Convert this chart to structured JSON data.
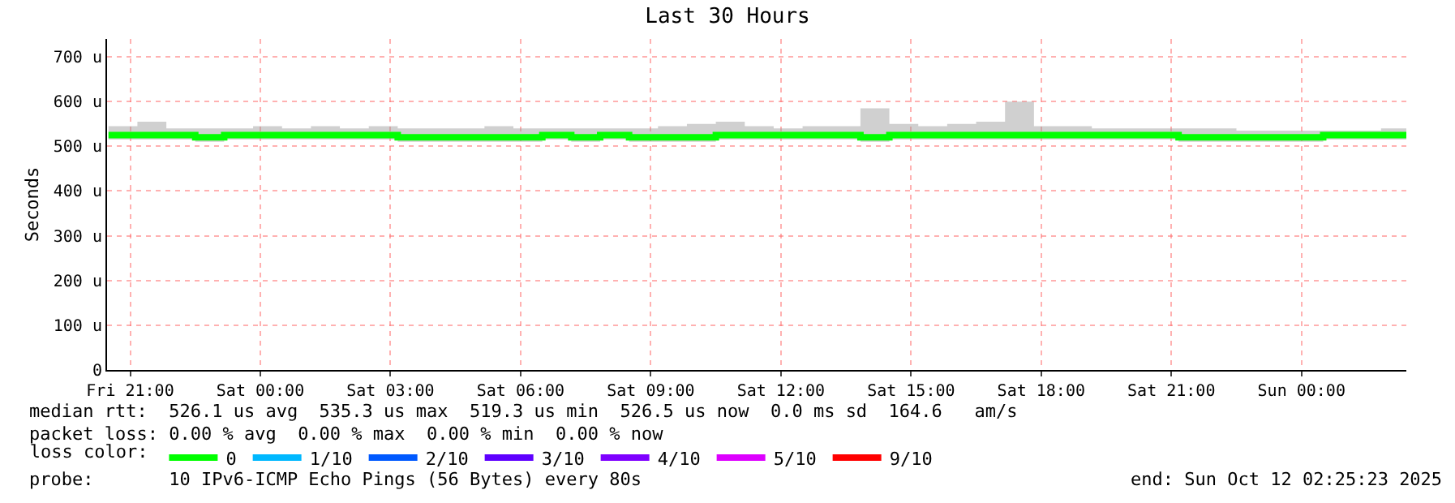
{
  "chart_data": {
    "type": "step",
    "title": "Last 30 Hours",
    "ylabel": "Seconds",
    "legend_title": "loss color:",
    "x": [
      "2025-10-10T20:30",
      "2025-10-10T21:10",
      "2025-10-10T21:50",
      "2025-10-10T22:30",
      "2025-10-10T23:10",
      "2025-10-10T23:50",
      "2025-10-11T00:30",
      "2025-10-11T01:10",
      "2025-10-11T01:50",
      "2025-10-11T02:30",
      "2025-10-11T03:10",
      "2025-10-11T03:50",
      "2025-10-11T04:30",
      "2025-10-11T05:10",
      "2025-10-11T05:50",
      "2025-10-11T06:30",
      "2025-10-11T07:10",
      "2025-10-11T07:50",
      "2025-10-11T08:30",
      "2025-10-11T09:10",
      "2025-10-11T09:50",
      "2025-10-11T10:30",
      "2025-10-11T11:10",
      "2025-10-11T11:50",
      "2025-10-11T12:30",
      "2025-10-11T13:10",
      "2025-10-11T13:50",
      "2025-10-11T14:30",
      "2025-10-11T15:10",
      "2025-10-11T15:50",
      "2025-10-11T16:30",
      "2025-10-11T17:10",
      "2025-10-11T17:50",
      "2025-10-11T18:30",
      "2025-10-11T19:10",
      "2025-10-11T19:50",
      "2025-10-11T20:30",
      "2025-10-11T21:10",
      "2025-10-11T21:50",
      "2025-10-11T22:30",
      "2025-10-11T23:10",
      "2025-10-11T23:50",
      "2025-10-12T00:30",
      "2025-10-12T01:10",
      "2025-10-12T01:50",
      "2025-10-12T02:25"
    ],
    "series": [
      {
        "name": "0",
        "color": "#00ff00",
        "values": [
          525,
          525,
          525,
          520,
          525,
          525,
          525,
          525,
          525,
          525,
          520,
          520,
          520,
          520,
          520,
          525,
          520,
          525,
          520,
          520,
          520,
          525,
          525,
          525,
          525,
          525,
          520,
          525,
          525,
          525,
          525,
          525,
          525,
          525,
          525,
          525,
          525,
          520,
          520,
          520,
          520,
          520,
          525,
          525,
          525,
          525
        ],
        "lower": [
          515,
          515,
          515,
          510,
          515,
          515,
          515,
          515,
          515,
          515,
          510,
          510,
          510,
          510,
          510,
          515,
          510,
          515,
          510,
          510,
          510,
          515,
          515,
          515,
          515,
          515,
          510,
          515,
          515,
          515,
          515,
          515,
          515,
          515,
          515,
          515,
          515,
          510,
          510,
          510,
          510,
          510,
          515,
          515,
          515,
          515
        ],
        "upper": [
          545,
          555,
          540,
          540,
          540,
          545,
          540,
          545,
          540,
          545,
          540,
          540,
          540,
          545,
          540,
          540,
          540,
          540,
          540,
          545,
          550,
          555,
          545,
          540,
          545,
          545,
          585,
          550,
          545,
          550,
          555,
          600,
          545,
          545,
          540,
          540,
          540,
          540,
          540,
          535,
          535,
          535,
          535,
          535,
          540,
          540
        ]
      },
      {
        "name": "1/10",
        "color": "#00b8ff",
        "values": [
          null,
          null,
          null,
          null,
          null,
          null,
          null,
          null,
          null,
          null,
          null,
          null,
          null,
          null,
          null,
          null,
          null,
          null,
          null,
          null,
          null,
          null,
          null,
          null,
          null,
          null,
          null,
          null,
          null,
          null,
          null,
          null,
          null,
          null,
          null,
          null,
          null,
          null,
          null,
          null,
          null,
          null,
          null,
          null,
          null,
          null
        ]
      },
      {
        "name": "2/10",
        "color": "#0059ff",
        "values": [
          null,
          null,
          null,
          null,
          null,
          null,
          null,
          null,
          null,
          null,
          null,
          null,
          null,
          null,
          null,
          null,
          null,
          null,
          null,
          null,
          null,
          null,
          null,
          null,
          null,
          null,
          null,
          null,
          null,
          null,
          null,
          null,
          null,
          null,
          null,
          null,
          null,
          null,
          null,
          null,
          null,
          null,
          null,
          null,
          null,
          null
        ]
      },
      {
        "name": "3/10",
        "color": "#5e00ff",
        "values": [
          null,
          null,
          null,
          null,
          null,
          null,
          null,
          null,
          null,
          null,
          null,
          null,
          null,
          null,
          null,
          null,
          null,
          null,
          null,
          null,
          null,
          null,
          null,
          null,
          null,
          null,
          null,
          null,
          null,
          null,
          null,
          null,
          null,
          null,
          null,
          null,
          null,
          null,
          null,
          null,
          null,
          null,
          null,
          null,
          null,
          null
        ]
      },
      {
        "name": "4/10",
        "color": "#7e00ff",
        "values": [
          null,
          null,
          null,
          null,
          null,
          null,
          null,
          null,
          null,
          null,
          null,
          null,
          null,
          null,
          null,
          null,
          null,
          null,
          null,
          null,
          null,
          null,
          null,
          null,
          null,
          null,
          null,
          null,
          null,
          null,
          null,
          null,
          null,
          null,
          null,
          null,
          null,
          null,
          null,
          null,
          null,
          null,
          null,
          null,
          null,
          null
        ]
      },
      {
        "name": "5/10",
        "color": "#dd00ff",
        "values": [
          null,
          null,
          null,
          null,
          null,
          null,
          null,
          null,
          null,
          null,
          null,
          null,
          null,
          null,
          null,
          null,
          null,
          null,
          null,
          null,
          null,
          null,
          null,
          null,
          null,
          null,
          null,
          null,
          null,
          null,
          null,
          null,
          null,
          null,
          null,
          null,
          null,
          null,
          null,
          null,
          null,
          null,
          null,
          null,
          null,
          null
        ]
      },
      {
        "name": "9/10",
        "color": "#ff0000",
        "values": [
          null,
          null,
          null,
          null,
          null,
          null,
          null,
          null,
          null,
          null,
          null,
          null,
          null,
          null,
          null,
          null,
          null,
          null,
          null,
          null,
          null,
          null,
          null,
          null,
          null,
          null,
          null,
          null,
          null,
          null,
          null,
          null,
          null,
          null,
          null,
          null,
          null,
          null,
          null,
          null,
          null,
          null,
          null,
          null,
          null,
          null
        ]
      }
    ],
    "xlim": [
      "2025-10-10T20:28",
      "2025-10-12T02:25"
    ],
    "xticks": [
      {
        "value": "2025-10-10T21:00",
        "label": "Fri 21:00"
      },
      {
        "value": "2025-10-11T00:00",
        "label": "Sat 00:00"
      },
      {
        "value": "2025-10-11T03:00",
        "label": "Sat 03:00"
      },
      {
        "value": "2025-10-11T06:00",
        "label": "Sat 06:00"
      },
      {
        "value": "2025-10-11T09:00",
        "label": "Sat 09:00"
      },
      {
        "value": "2025-10-11T12:00",
        "label": "Sat 12:00"
      },
      {
        "value": "2025-10-11T15:00",
        "label": "Sat 15:00"
      },
      {
        "value": "2025-10-11T18:00",
        "label": "Sat 18:00"
      },
      {
        "value": "2025-10-11T21:00",
        "label": "Sat 21:00"
      },
      {
        "value": "2025-10-12T00:00",
        "label": "Sun 00:00"
      }
    ],
    "ylim": [
      0,
      740
    ],
    "yticks": [
      0,
      {
        "value": 100,
        "label": "100 u"
      },
      {
        "value": 200,
        "label": "200 u"
      },
      {
        "value": 300,
        "label": "300 u"
      },
      {
        "value": 400,
        "label": "400 u"
      },
      {
        "value": 500,
        "label": "500 u"
      },
      {
        "value": 600,
        "label": "600 u"
      },
      {
        "value": 700,
        "label": "700 u"
      }
    ],
    "grid": true,
    "legend": "bottom",
    "line_style": "solid",
    "annotations": [
      "median rtt:  526.1 us avg  535.3 us max  519.3 us min  526.5 us now  0.0 ms sd  164.6   am/s",
      "packet loss: 0.00 % avg  0.00 % max  0.00 % min  0.00 % now",
      "probe:       10 IPv6-ICMP Echo Pings (56 Bytes) every 80s",
      "end: Sun Oct 12 02:25:23 2025"
    ]
  }
}
